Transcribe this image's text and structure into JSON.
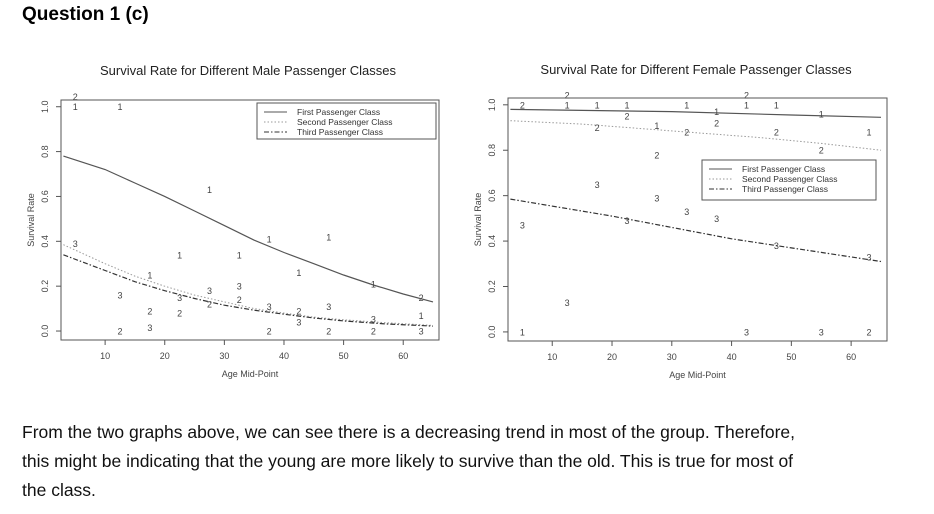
{
  "heading": "Question 1 (c)",
  "paragraph_lines": [
    "From the two graphs above, we can see there is a decreasing trend in most of the group. Therefore,",
    "this might be indicating that the young are more likely to survive than the old. This is true for most of",
    "the class."
  ],
  "chart_data": [
    {
      "type": "line",
      "title": "Survival Rate for Different Male Passenger Classes",
      "xlabel": "Age Mid-Point",
      "ylabel": "Survival Rate",
      "xlim": [
        2.6,
        66
      ],
      "ylim": [
        -0.04,
        1.03
      ],
      "xticks": [
        10,
        20,
        30,
        40,
        50,
        60
      ],
      "yticks": [
        0.0,
        0.2,
        0.4,
        0.6,
        0.8,
        1.0
      ],
      "legend_position": "top-right",
      "series": [
        {
          "name": "First Passenger Class",
          "label": "1",
          "style": "solid",
          "curve": [
            [
              3,
              0.78
            ],
            [
              10,
              0.72
            ],
            [
              15,
              0.66
            ],
            [
              20,
              0.6
            ],
            [
              25,
              0.535
            ],
            [
              30,
              0.47
            ],
            [
              35,
              0.405
            ],
            [
              40,
              0.35
            ],
            [
              45,
              0.3
            ],
            [
              50,
              0.25
            ],
            [
              55,
              0.205
            ],
            [
              60,
              0.165
            ],
            [
              65,
              0.13
            ]
          ],
          "points": [
            [
              5,
              1.0
            ],
            [
              12.5,
              1.0
            ],
            [
              17.5,
              0.25
            ],
            [
              22.5,
              0.34
            ],
            [
              27.5,
              0.63
            ],
            [
              32.5,
              0.34
            ],
            [
              37.5,
              0.41
            ],
            [
              42.5,
              0.26
            ],
            [
              47.5,
              0.42
            ],
            [
              55,
              0.21
            ],
            [
              63,
              0.07
            ]
          ]
        },
        {
          "name": "Second Passenger Class",
          "label": "2",
          "style": "dotted",
          "curve": [
            [
              3,
              0.385
            ],
            [
              10,
              0.3
            ],
            [
              15,
              0.245
            ],
            [
              20,
              0.2
            ],
            [
              25,
              0.16
            ],
            [
              30,
              0.13
            ],
            [
              35,
              0.1
            ],
            [
              40,
              0.08
            ],
            [
              45,
              0.062
            ],
            [
              50,
              0.05
            ],
            [
              57,
              0.037
            ],
            [
              65,
              0.025
            ]
          ],
          "points": [
            [
              5,
              1.0
            ],
            [
              12.5,
              0.0
            ],
            [
              17.5,
              0.09
            ],
            [
              22.5,
              0.08
            ],
            [
              27.5,
              0.12
            ],
            [
              32.5,
              0.14
            ],
            [
              37.5,
              0.0
            ],
            [
              42.5,
              0.09
            ],
            [
              47.5,
              0.0
            ],
            [
              55,
              0.0
            ],
            [
              63,
              0.15
            ]
          ]
        },
        {
          "name": "Third Passenger Class",
          "label": "3",
          "style": "dashdot",
          "curve": [
            [
              3,
              0.34
            ],
            [
              10,
              0.27
            ],
            [
              15,
              0.22
            ],
            [
              20,
              0.18
            ],
            [
              25,
              0.145
            ],
            [
              30,
              0.115
            ],
            [
              35,
              0.093
            ],
            [
              40,
              0.075
            ],
            [
              45,
              0.058
            ],
            [
              50,
              0.045
            ],
            [
              57,
              0.032
            ],
            [
              65,
              0.022
            ]
          ],
          "points": [
            [
              5,
              0.39
            ],
            [
              12.5,
              0.16
            ],
            [
              17.5,
              0.06
            ],
            [
              22.5,
              0.15
            ],
            [
              27.5,
              0.18
            ],
            [
              32.5,
              0.2
            ],
            [
              37.5,
              0.11
            ],
            [
              42.5,
              0.04
            ],
            [
              47.5,
              0.11
            ],
            [
              55,
              0.01
            ],
            [
              63,
              0.0
            ]
          ]
        }
      ]
    },
    {
      "type": "line",
      "title": "Survival Rate for Different Female Passenger Classes",
      "xlabel": "Age Mid-Point",
      "ylabel": "Survival Rate",
      "xlim": [
        2.6,
        66
      ],
      "ylim": [
        -0.04,
        1.03
      ],
      "xticks": [
        10,
        20,
        30,
        40,
        50,
        60
      ],
      "yticks": [
        0.0,
        0.2,
        0.4,
        0.6,
        0.8,
        1.0
      ],
      "legend_position": "right",
      "series": [
        {
          "name": "First Passenger Class",
          "label": "1",
          "style": "solid",
          "curve": [
            [
              3,
              0.98
            ],
            [
              30,
              0.97
            ],
            [
              50,
              0.955
            ],
            [
              65,
              0.945
            ]
          ],
          "points": [
            [
              5,
              0.0
            ],
            [
              12.5,
              1.0
            ],
            [
              17.5,
              1.0
            ],
            [
              22.5,
              1.0
            ],
            [
              27.5,
              0.91
            ],
            [
              32.5,
              1.0
            ],
            [
              37.5,
              0.97
            ],
            [
              42.5,
              1.0
            ],
            [
              47.5,
              1.0
            ],
            [
              55,
              0.96
            ],
            [
              63,
              0.88
            ]
          ]
        },
        {
          "name": "Second Passenger Class",
          "label": "2",
          "style": "dotted",
          "curve": [
            [
              3,
              0.93
            ],
            [
              15,
              0.915
            ],
            [
              30,
              0.885
            ],
            [
              45,
              0.855
            ],
            [
              55,
              0.83
            ],
            [
              65,
              0.8
            ]
          ],
          "points": [
            [
              5,
              1.0
            ],
            [
              12.5,
              1.0
            ],
            [
              17.5,
              0.9
            ],
            [
              22.5,
              0.95
            ],
            [
              27.5,
              0.78
            ],
            [
              32.5,
              0.88
            ],
            [
              37.5,
              0.92
            ],
            [
              42.5,
              1.0
            ],
            [
              47.5,
              0.88
            ],
            [
              55,
              0.8
            ],
            [
              63,
              0.0
            ]
          ]
        },
        {
          "name": "Third Passenger Class",
          "label": "3",
          "style": "dashdot",
          "curve": [
            [
              3,
              0.585
            ],
            [
              20,
              0.51
            ],
            [
              40,
              0.41
            ],
            [
              55,
              0.35
            ],
            [
              65,
              0.31
            ]
          ],
          "points": [
            [
              5,
              0.47
            ],
            [
              12.5,
              0.13
            ],
            [
              17.5,
              0.65
            ],
            [
              22.5,
              0.49
            ],
            [
              27.5,
              0.59
            ],
            [
              32.5,
              0.53
            ],
            [
              37.5,
              0.5
            ],
            [
              42.5,
              0.0
            ],
            [
              47.5,
              0.38
            ],
            [
              55,
              0.0
            ],
            [
              63,
              0.33
            ]
          ]
        }
      ]
    }
  ]
}
